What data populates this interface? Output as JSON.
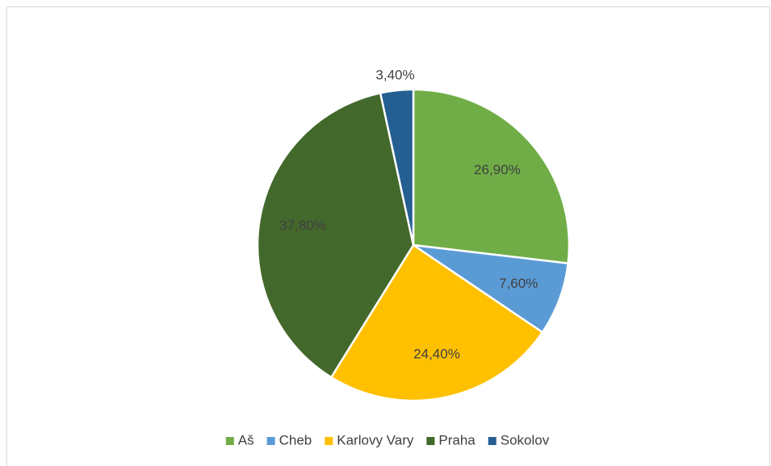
{
  "chart_data": {
    "type": "pie",
    "categories": [
      "Aš",
      "Cheb",
      "Karlovy Vary",
      "Praha",
      "Sokolov"
    ],
    "values": [
      26.9,
      7.6,
      24.4,
      37.8,
      3.4
    ],
    "value_labels": [
      "26,90%",
      "7,60%",
      "24,40%",
      "37,80%",
      "3,40%"
    ],
    "colors": [
      "#70ad47",
      "#5b9bd5",
      "#ffc000",
      "#43682b",
      "#255e91"
    ],
    "legend": "bottom"
  }
}
